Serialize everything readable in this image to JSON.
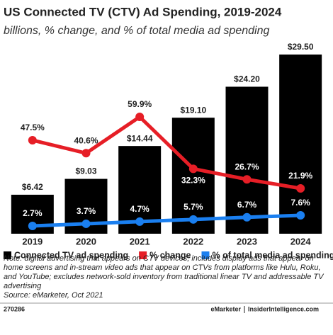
{
  "chart_data": {
    "type": "bar",
    "title": "US Connected TV (CTV) Ad Spending, 2019-2024",
    "subtitle": "billions, % change, and % of total media ad spending",
    "categories": [
      "2019",
      "2020",
      "2021",
      "2022",
      "2023",
      "2024"
    ],
    "series": [
      {
        "name": "Connected TV ad spending",
        "type": "bar",
        "color": "#000000",
        "values": [
          6.42,
          9.03,
          14.44,
          19.1,
          24.2,
          29.5
        ],
        "value_labels": [
          "$6.42",
          "$9.03",
          "$14.44",
          "$19.10",
          "$24.20",
          "$29.50"
        ]
      },
      {
        "name": "% change",
        "type": "line",
        "color": "#e61e26",
        "values": [
          47.5,
          40.6,
          59.9,
          32.3,
          26.7,
          21.9
        ],
        "value_labels": [
          "47.5%",
          "40.6%",
          "59.9%",
          "32.3%",
          "26.7%",
          "21.9%"
        ]
      },
      {
        "name": "% of total media ad spending",
        "type": "line",
        "color": "#1a7ff0",
        "values": [
          2.7,
          3.7,
          4.7,
          5.7,
          6.7,
          7.6
        ],
        "value_labels": [
          "2.7%",
          "3.7%",
          "4.7%",
          "5.7%",
          "6.7%",
          "7.6%"
        ]
      }
    ],
    "note": "Note: digital advertising that appears on CTV devices; includes display ads that appear on home screens and in-stream video ads that appear on CTVs from platforms like Hulu, Roku, and YouTube; excludes network-sold inventory from traditional linear TV and addressable TV advertising",
    "source": "Source: eMarketer, Oct 2021"
  },
  "footer": {
    "id": "270286",
    "brand": "eMarketer",
    "site": "InsiderIntelligence.com"
  }
}
